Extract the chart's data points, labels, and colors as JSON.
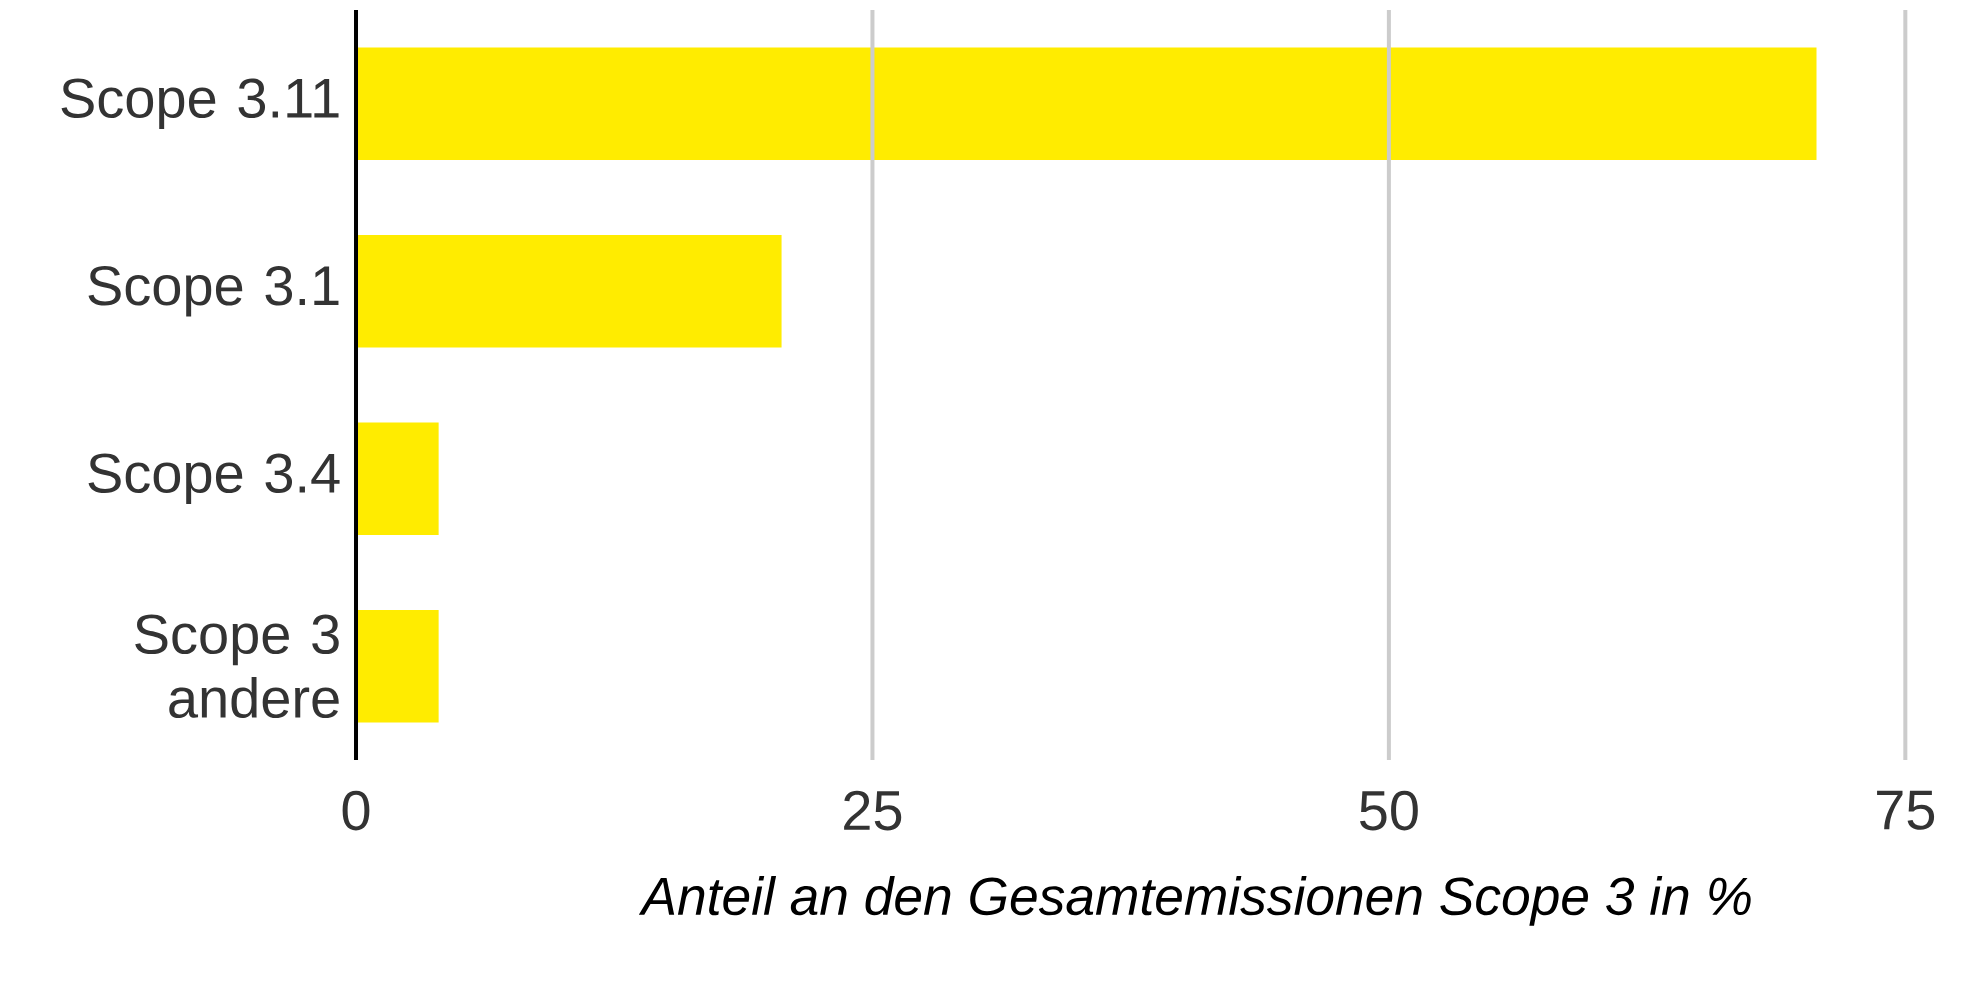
{
  "chart_data": {
    "type": "bar",
    "orientation": "horizontal",
    "categories": [
      "Scope 3.11",
      "Scope 3.1",
      "Scope 3.4",
      "Scope 3 andere"
    ],
    "values": [
      70.7,
      20.6,
      4.0,
      4.0
    ],
    "color": "#ffec00",
    "xlim": [
      0,
      75
    ],
    "xticks": [
      0,
      25,
      50,
      75
    ],
    "xlabel": "Anteil an den Gesamtemissionen Scope 3 in %",
    "grid": "x"
  }
}
